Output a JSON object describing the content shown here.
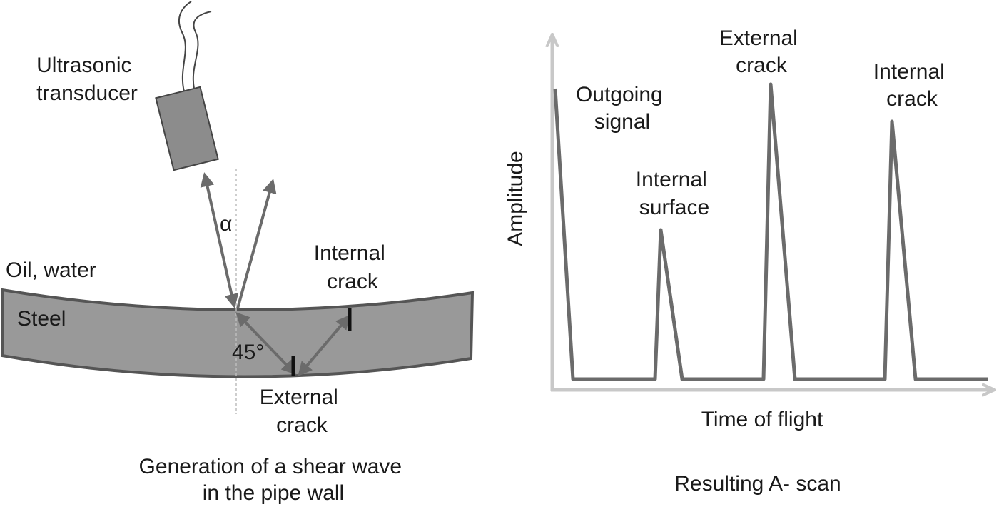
{
  "left_diagram": {
    "transducer_label": [
      "Ultrasonic",
      "transducer"
    ],
    "angle_alpha": "α",
    "medium_label": "Oil,  water",
    "material_label": "Steel",
    "angle_45": "45°",
    "internal_crack_label": [
      "Internal",
      "crack"
    ],
    "external_crack_label": [
      "External",
      "crack"
    ],
    "caption": [
      "Generation of a shear wave",
      "in the pipe wall"
    ]
  },
  "right_diagram": {
    "y_axis_label": "Amplitude",
    "x_axis_label": "Time of flight",
    "caption": "Resulting A- scan",
    "peaks": [
      {
        "label": [
          "Outgoing",
          "signal"
        ]
      },
      {
        "label": [
          "Internal",
          "surface"
        ]
      },
      {
        "label": [
          "External",
          "crack"
        ]
      },
      {
        "label": [
          "Internal",
          "crack"
        ]
      }
    ]
  },
  "colors": {
    "steel_fill": "#999999",
    "steel_edge": "#555555",
    "line": "#6b6b6b",
    "axis": "#c8c8c8",
    "transducer_fill": "#8c8c8c"
  }
}
